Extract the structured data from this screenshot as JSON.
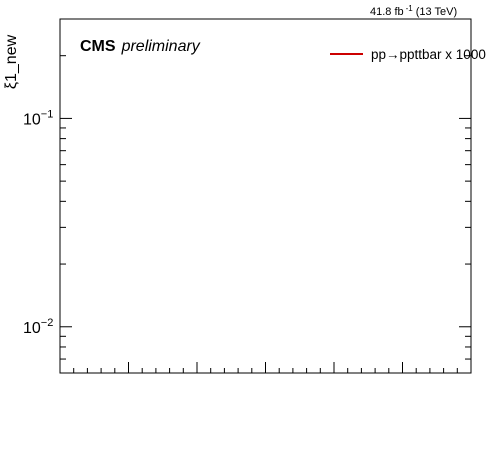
{
  "header": {
    "lumi_value": "41.8 fb",
    "lumi_exp": "-1",
    "lumi_energy": "(13 TeV)"
  },
  "chart_data": {
    "type": "line",
    "title": "",
    "xlabel": "",
    "ylabel": "ξ1_new",
    "y_scale": "log",
    "ylim": [
      0.006,
      0.3
    ],
    "y_tick_labels": [
      {
        "value": 0.1,
        "base": "10",
        "exp": "−1"
      },
      {
        "value": 0.01,
        "base": "10",
        "exp": "−2"
      }
    ],
    "x_tick_labels": [],
    "grid": false,
    "legend_position": "top-right",
    "series": [
      {
        "name": "pp→ppttbar x 1000",
        "color": "#cc0000",
        "x": [],
        "y": []
      }
    ]
  },
  "annotations": {
    "experiment": "CMS",
    "status": "preliminary"
  }
}
